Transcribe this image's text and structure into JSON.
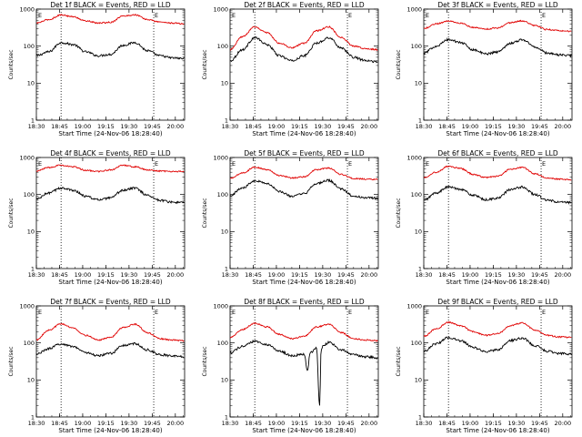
{
  "figure": {
    "background": "#ffffff",
    "events_color": "#000000",
    "lld_color": "#e00000"
  },
  "chart_data": [
    {
      "type": "line",
      "title": "Det 1f BLACK = Events, RED = LLD",
      "xlabel": "Start Time (24-Nov-06 18:28:40)",
      "ylabel": "Counts/sec",
      "xlim": [
        "18:30",
        "20:06"
      ],
      "ylim": [
        1,
        1000
      ],
      "yscale": "log",
      "x_ticks": [
        "18:30",
        "18:45",
        "19:00",
        "19:15",
        "19:30",
        "19:45",
        "20:00"
      ],
      "y_ticks": [
        "1",
        "10",
        "100",
        "1000"
      ],
      "vlines": [
        "18:46",
        "19:46"
      ],
      "markers": {
        "first": "E",
        "last": "E"
      },
      "series": [
        {
          "name": "Events",
          "x": [
            "18:30",
            "18:38",
            "18:46",
            "18:54",
            "19:02",
            "19:10",
            "19:18",
            "19:26",
            "19:34",
            "19:42",
            "19:50",
            "19:58",
            "20:06"
          ],
          "values": [
            55,
            70,
            125,
            110,
            70,
            55,
            60,
            105,
            125,
            75,
            55,
            48,
            46
          ]
        },
        {
          "name": "LLD",
          "x": [
            "18:30",
            "18:38",
            "18:46",
            "18:54",
            "19:02",
            "19:10",
            "19:18",
            "19:26",
            "19:34",
            "19:42",
            "19:50",
            "19:58",
            "20:06"
          ],
          "values": [
            420,
            520,
            700,
            620,
            480,
            420,
            440,
            650,
            700,
            520,
            450,
            420,
            400
          ]
        }
      ]
    },
    {
      "type": "line",
      "title": "Det 2f BLACK = Events, RED = LLD",
      "xlabel": "Start Time (24-Nov-06 18:28:40)",
      "ylabel": "Counts/sec",
      "xlim": [
        "18:30",
        "20:06"
      ],
      "ylim": [
        1,
        1000
      ],
      "yscale": "log",
      "x_ticks": [
        "18:30",
        "18:45",
        "19:00",
        "19:15",
        "19:30",
        "19:45",
        "20:00"
      ],
      "y_ticks": [
        "1",
        "10",
        "100",
        "1000"
      ],
      "vlines": [
        "18:46",
        "19:46"
      ],
      "markers": {
        "first": "E",
        "last": "E"
      },
      "series": [
        {
          "name": "Events",
          "x": [
            "18:30",
            "18:38",
            "18:46",
            "18:54",
            "19:02",
            "19:10",
            "19:18",
            "19:26",
            "19:34",
            "19:42",
            "19:50",
            "19:58",
            "20:06"
          ],
          "values": [
            40,
            80,
            170,
            110,
            55,
            40,
            55,
            120,
            170,
            90,
            50,
            40,
            38
          ]
        },
        {
          "name": "LLD",
          "x": [
            "18:30",
            "18:38",
            "18:46",
            "18:54",
            "19:02",
            "19:10",
            "19:18",
            "19:26",
            "19:34",
            "19:42",
            "19:50",
            "19:58",
            "20:06"
          ],
          "values": [
            80,
            180,
            330,
            230,
            120,
            90,
            120,
            260,
            330,
            170,
            100,
            85,
            80
          ]
        }
      ]
    },
    {
      "type": "line",
      "title": "Det 3f BLACK = Events, RED = LLD",
      "xlabel": "Start Time (24-Nov-06 18:28:40)",
      "ylabel": "Counts/sec",
      "xlim": [
        "18:30",
        "20:06"
      ],
      "ylim": [
        1,
        1000
      ],
      "yscale": "log",
      "x_ticks": [
        "18:30",
        "18:45",
        "19:00",
        "19:15",
        "19:30",
        "19:45",
        "20:00"
      ],
      "y_ticks": [
        "1",
        "10",
        "100",
        "1000"
      ],
      "vlines": [
        "18:46",
        "19:46"
      ],
      "markers": {
        "first": "E",
        "last": "E"
      },
      "series": [
        {
          "name": "Events",
          "x": [
            "18:30",
            "18:38",
            "18:46",
            "18:54",
            "19:02",
            "19:10",
            "19:18",
            "19:26",
            "19:34",
            "19:42",
            "19:50",
            "19:58",
            "20:06"
          ],
          "values": [
            65,
            100,
            150,
            125,
            80,
            62,
            70,
            120,
            150,
            95,
            65,
            58,
            56
          ]
        },
        {
          "name": "LLD",
          "x": [
            "18:30",
            "18:38",
            "18:46",
            "18:54",
            "19:02",
            "19:10",
            "19:18",
            "19:26",
            "19:34",
            "19:42",
            "19:50",
            "19:58",
            "20:06"
          ],
          "values": [
            300,
            400,
            480,
            420,
            320,
            290,
            310,
            430,
            480,
            360,
            280,
            260,
            250
          ]
        }
      ]
    },
    {
      "type": "line",
      "title": "Det 4f BLACK = Events, RED = LLD",
      "xlabel": "Start Time (24-Nov-06 18:28:40)",
      "ylabel": "Counts/sec",
      "xlim": [
        "18:30",
        "20:06"
      ],
      "ylim": [
        1,
        1000
      ],
      "yscale": "log",
      "x_ticks": [
        "18:30",
        "18:45",
        "19:00",
        "19:15",
        "19:30",
        "19:45",
        "20:00"
      ],
      "y_ticks": [
        "1",
        "10",
        "100",
        "1000"
      ],
      "vlines": [
        "18:46",
        "19:46"
      ],
      "markers": {
        "first": "E",
        "last": "E"
      },
      "series": [
        {
          "name": "Events",
          "x": [
            "18:30",
            "18:38",
            "18:46",
            "18:54",
            "19:02",
            "19:10",
            "19:18",
            "19:26",
            "19:34",
            "19:42",
            "19:50",
            "19:58",
            "20:06"
          ],
          "values": [
            75,
            110,
            150,
            130,
            90,
            72,
            80,
            130,
            150,
            95,
            70,
            62,
            60
          ]
        },
        {
          "name": "LLD",
          "x": [
            "18:30",
            "18:38",
            "18:46",
            "18:54",
            "19:02",
            "19:10",
            "19:18",
            "19:26",
            "19:34",
            "19:42",
            "19:50",
            "19:58",
            "20:06"
          ],
          "values": [
            430,
            540,
            620,
            560,
            450,
            420,
            460,
            620,
            560,
            460,
            430,
            420,
            420
          ]
        }
      ]
    },
    {
      "type": "line",
      "title": "Det 5f BLACK = Events, RED = LLD",
      "xlabel": "Start Time (24-Nov-06 18:28:40)",
      "ylabel": "Counts/sec",
      "xlim": [
        "18:30",
        "20:06"
      ],
      "ylim": [
        1,
        1000
      ],
      "yscale": "log",
      "x_ticks": [
        "18:30",
        "18:45",
        "19:00",
        "19:15",
        "19:30",
        "19:45",
        "20:00"
      ],
      "y_ticks": [
        "1",
        "10",
        "100",
        "1000"
      ],
      "vlines": [
        "18:46",
        "19:46"
      ],
      "markers": {
        "first": "E",
        "last": "E"
      },
      "series": [
        {
          "name": "Events",
          "x": [
            "18:30",
            "18:38",
            "18:46",
            "18:54",
            "19:02",
            "19:10",
            "19:18",
            "19:26",
            "19:34",
            "19:42",
            "19:50",
            "19:58",
            "20:06"
          ],
          "values": [
            95,
            150,
            240,
            200,
            120,
            90,
            105,
            200,
            240,
            140,
            90,
            82,
            80
          ]
        },
        {
          "name": "LLD",
          "x": [
            "18:30",
            "18:38",
            "18:46",
            "18:54",
            "19:02",
            "19:10",
            "19:18",
            "19:26",
            "19:34",
            "19:42",
            "19:50",
            "19:58",
            "20:06"
          ],
          "values": [
            270,
            380,
            550,
            470,
            330,
            280,
            300,
            470,
            520,
            350,
            270,
            260,
            255
          ]
        }
      ]
    },
    {
      "type": "line",
      "title": "Det 6f BLACK = Events, RED = LLD",
      "xlabel": "Start Time (24-Nov-06 18:28:40)",
      "ylabel": "Counts/sec",
      "xlim": [
        "18:30",
        "20:06"
      ],
      "ylim": [
        1,
        1000
      ],
      "yscale": "log",
      "x_ticks": [
        "18:30",
        "18:45",
        "19:00",
        "19:15",
        "19:30",
        "19:45",
        "20:00"
      ],
      "y_ticks": [
        "1",
        "10",
        "100",
        "1000"
      ],
      "vlines": [
        "18:46",
        "19:46"
      ],
      "markers": {
        "first": "E",
        "last": "E"
      },
      "series": [
        {
          "name": "Events",
          "x": [
            "18:30",
            "18:38",
            "18:46",
            "18:54",
            "19:02",
            "19:10",
            "19:18",
            "19:26",
            "19:34",
            "19:42",
            "19:50",
            "19:58",
            "20:06"
          ],
          "values": [
            70,
            110,
            160,
            140,
            95,
            72,
            80,
            135,
            160,
            100,
            70,
            62,
            60
          ]
        },
        {
          "name": "LLD",
          "x": [
            "18:30",
            "18:38",
            "18:46",
            "18:54",
            "19:02",
            "19:10",
            "19:18",
            "19:26",
            "19:34",
            "19:42",
            "19:50",
            "19:58",
            "20:06"
          ],
          "values": [
            290,
            400,
            580,
            500,
            350,
            290,
            310,
            480,
            540,
            360,
            280,
            260,
            250
          ]
        }
      ]
    },
    {
      "type": "line",
      "title": "Det 7f BLACK = Events, RED = LLD",
      "xlabel": "Start Time (24-Nov-06 18:28:40)",
      "ylabel": "Counts/sec",
      "xlim": [
        "18:30",
        "20:06"
      ],
      "ylim": [
        1,
        1000
      ],
      "yscale": "log",
      "x_ticks": [
        "18:30",
        "18:45",
        "19:00",
        "19:15",
        "19:30",
        "19:45",
        "20:00"
      ],
      "y_ticks": [
        "1",
        "10",
        "100",
        "1000"
      ],
      "vlines": [
        "18:46",
        "19:46"
      ],
      "markers": {
        "first": "E",
        "last": "E"
      },
      "series": [
        {
          "name": "Events",
          "x": [
            "18:30",
            "18:38",
            "18:46",
            "18:54",
            "19:02",
            "19:10",
            "19:18",
            "19:26",
            "19:34",
            "19:42",
            "19:50",
            "19:58",
            "20:06"
          ],
          "values": [
            50,
            70,
            95,
            80,
            55,
            45,
            52,
            85,
            95,
            65,
            48,
            44,
            42
          ]
        },
        {
          "name": "LLD",
          "x": [
            "18:30",
            "18:38",
            "18:46",
            "18:54",
            "19:02",
            "19:10",
            "19:18",
            "19:26",
            "19:34",
            "19:42",
            "19:50",
            "19:58",
            "20:06"
          ],
          "values": [
            120,
            220,
            330,
            250,
            160,
            120,
            140,
            260,
            320,
            190,
            130,
            120,
            115
          ]
        }
      ]
    },
    {
      "type": "line",
      "title": "Det 8f BLACK = Events, RED = LLD",
      "xlabel": "Start Time (24-Nov-06 18:28:40)",
      "ylabel": "Counts/sec",
      "xlim": [
        "18:30",
        "20:06"
      ],
      "ylim": [
        1,
        1000
      ],
      "yscale": "log",
      "x_ticks": [
        "18:30",
        "18:45",
        "19:00",
        "19:15",
        "19:30",
        "19:45",
        "20:00"
      ],
      "y_ticks": [
        "1",
        "10",
        "100",
        "1000"
      ],
      "vlines": [
        "18:46",
        "19:46"
      ],
      "markers": {
        "first": "E",
        "last": "E"
      },
      "series": [
        {
          "name": "Events",
          "x": [
            "18:30",
            "18:38",
            "18:46",
            "18:54",
            "19:02",
            "19:10",
            "19:18",
            "19:20",
            "19:22",
            "19:26",
            "19:28",
            "19:29",
            "19:30",
            "19:34",
            "19:42",
            "19:50",
            "19:58",
            "20:06"
          ],
          "values": [
            55,
            80,
            110,
            90,
            60,
            45,
            50,
            18,
            55,
            75,
            2,
            70,
            80,
            105,
            65,
            48,
            42,
            40
          ]
        },
        {
          "name": "LLD",
          "x": [
            "18:30",
            "18:38",
            "18:46",
            "18:54",
            "19:02",
            "19:10",
            "19:18",
            "19:26",
            "19:34",
            "19:42",
            "19:50",
            "19:58",
            "20:06"
          ],
          "values": [
            140,
            230,
            340,
            270,
            170,
            130,
            150,
            270,
            320,
            190,
            130,
            120,
            115
          ]
        }
      ]
    },
    {
      "type": "line",
      "title": "Det 9f BLACK = Events, RED = LLD",
      "xlabel": "Start Time (24-Nov-06 18:28:40)",
      "ylabel": "Counts/sec",
      "xlim": [
        "18:30",
        "20:06"
      ],
      "ylim": [
        1,
        1000
      ],
      "yscale": "log",
      "x_ticks": [
        "18:30",
        "18:45",
        "19:00",
        "19:15",
        "19:30",
        "19:45",
        "20:00"
      ],
      "y_ticks": [
        "1",
        "10",
        "100",
        "1000"
      ],
      "vlines": [
        "18:46",
        "19:46"
      ],
      "markers": {
        "first": "E",
        "last": "E"
      },
      "series": [
        {
          "name": "Events",
          "x": [
            "18:30",
            "18:38",
            "18:46",
            "18:54",
            "19:02",
            "19:10",
            "19:18",
            "19:26",
            "19:34",
            "19:42",
            "19:50",
            "19:58",
            "20:06"
          ],
          "values": [
            60,
            95,
            140,
            115,
            75,
            58,
            65,
            115,
            135,
            85,
            60,
            52,
            50
          ]
        },
        {
          "name": "LLD",
          "x": [
            "18:30",
            "18:38",
            "18:46",
            "18:54",
            "19:02",
            "19:10",
            "19:18",
            "19:26",
            "19:34",
            "19:42",
            "19:50",
            "19:58",
            "20:06"
          ],
          "values": [
            150,
            240,
            360,
            290,
            200,
            160,
            180,
            290,
            350,
            220,
            160,
            145,
            140
          ]
        }
      ]
    }
  ]
}
